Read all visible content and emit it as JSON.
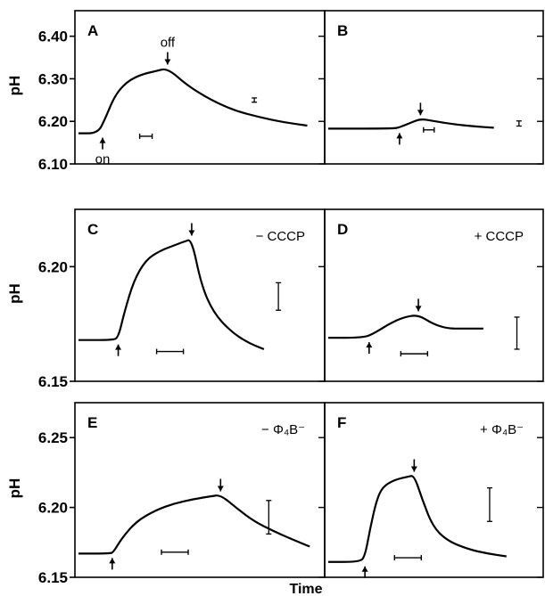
{
  "figure": {
    "xlabel": "Time"
  },
  "chart_data": [
    {
      "type": "line",
      "panel": "A",
      "ylabel": "pH",
      "yticks": [
        6.4,
        6.3,
        6.2,
        6.1
      ],
      "ylim": [
        6.1,
        6.46
      ],
      "xlim": [
        0,
        10
      ],
      "series": [
        {
          "x": [
            0,
            0.8,
            1.1,
            1.5,
            2.0,
            2.6,
            3.2,
            3.7,
            4.5,
            5.5,
            6.5,
            7.5,
            8.5,
            9.5
          ],
          "y": [
            6.172,
            6.172,
            6.205,
            6.26,
            6.293,
            6.31,
            6.318,
            6.325,
            6.285,
            6.25,
            6.225,
            6.21,
            6.198,
            6.19
          ]
        }
      ],
      "annotations": [
        {
          "text": "on",
          "x": 1.0,
          "y": 6.172,
          "dir": "up"
        },
        {
          "text": "off",
          "x": 3.7,
          "y": 6.325,
          "dir": "down"
        }
      ],
      "time_bar": {
        "x": 2.8,
        "y": 6.165
      },
      "error_bar": {
        "x": 7.3,
        "y": 6.25,
        "half_height": 0.005
      }
    },
    {
      "type": "line",
      "panel": "B",
      "ylim": [
        6.1,
        6.46
      ],
      "xlim": [
        0,
        10
      ],
      "series": [
        {
          "x": [
            0,
            3.1,
            3.4,
            3.9,
            4.4,
            5.0,
            6.0,
            7.0,
            7.9
          ],
          "y": [
            6.183,
            6.183,
            6.186,
            6.196,
            6.206,
            6.201,
            6.193,
            6.188,
            6.185
          ]
        }
      ],
      "annotations": [
        {
          "text": "",
          "x": 3.4,
          "y": 6.183,
          "dir": "up"
        },
        {
          "text": "",
          "x": 4.4,
          "y": 6.206,
          "dir": "down"
        }
      ],
      "time_bar": {
        "x": 4.8,
        "y": 6.18
      },
      "error_bar": {
        "x": 9.1,
        "y": 6.195,
        "half_height": 0.006
      }
    },
    {
      "type": "line",
      "panel": "C",
      "ylabel": "pH",
      "yticks": [
        6.2,
        6.15
      ],
      "ylim": [
        6.15,
        6.225
      ],
      "xlim": [
        0,
        10
      ],
      "condition": "− CCCP",
      "series": [
        {
          "x": [
            0,
            1.4,
            1.65,
            1.9,
            2.3,
            2.8,
            3.4,
            3.9,
            4.4,
            4.7,
            5.1,
            5.6,
            6.3,
            7.0,
            7.7
          ],
          "y": [
            6.168,
            6.168,
            6.169,
            6.18,
            6.194,
            6.203,
            6.207,
            6.209,
            6.211,
            6.212,
            6.192,
            6.18,
            6.172,
            6.167,
            6.164
          ]
        }
      ],
      "annotations": [
        {
          "text": "",
          "x": 1.65,
          "y": 6.168,
          "dir": "up"
        },
        {
          "text": "",
          "x": 4.7,
          "y": 6.212,
          "dir": "down"
        }
      ],
      "time_bar": {
        "x": 3.8,
        "y": 6.163
      },
      "error_bar": {
        "x": 8.3,
        "y": 6.187,
        "half_height": 0.006
      }
    },
    {
      "type": "line",
      "panel": "D",
      "ylim": [
        6.15,
        6.225
      ],
      "xlim": [
        0,
        10
      ],
      "condition": "+ CCCP",
      "series": [
        {
          "x": [
            0,
            1.7,
            2.2,
            2.9,
            3.6,
            4.3,
            5.0,
            5.7,
            6.5,
            7.4
          ],
          "y": [
            6.169,
            6.169,
            6.171,
            6.175,
            6.178,
            6.179,
            6.175,
            6.173,
            6.173,
            6.173
          ]
        }
      ],
      "annotations": [
        {
          "text": "",
          "x": 1.95,
          "y": 6.169,
          "dir": "up"
        },
        {
          "text": "",
          "x": 4.3,
          "y": 6.179,
          "dir": "down"
        }
      ],
      "time_bar": {
        "x": 4.1,
        "y": 6.162
      },
      "error_bar": {
        "x": 9.0,
        "y": 6.171,
        "half_height": 0.007
      }
    },
    {
      "type": "line",
      "panel": "E",
      "ylabel": "pH",
      "yticks": [
        6.25,
        6.2,
        6.15
      ],
      "ylim": [
        6.15,
        6.275
      ],
      "xlim": [
        0,
        10
      ],
      "condition": "− Φ₄B⁻",
      "series": [
        {
          "x": [
            0,
            1.3,
            1.45,
            1.8,
            2.4,
            3.2,
            4.0,
            4.8,
            5.5,
            5.9,
            6.6,
            7.3,
            8.1,
            8.9,
            9.6
          ],
          "y": [
            6.167,
            6.167,
            6.168,
            6.178,
            6.19,
            6.198,
            6.203,
            6.206,
            6.208,
            6.209,
            6.199,
            6.19,
            6.183,
            6.177,
            6.172
          ]
        }
      ],
      "annotations": [
        {
          "text": "",
          "x": 1.4,
          "y": 6.167,
          "dir": "up"
        },
        {
          "text": "",
          "x": 5.9,
          "y": 6.209,
          "dir": "down"
        }
      ],
      "time_bar": {
        "x": 4.0,
        "y": 6.168
      },
      "error_bar": {
        "x": 7.9,
        "y": 6.193,
        "half_height": 0.012
      }
    },
    {
      "type": "line",
      "panel": "F",
      "ylim": [
        6.15,
        6.275
      ],
      "xlim": [
        0,
        10
      ],
      "condition": "+ Φ₄B⁻",
      "series": [
        {
          "x": [
            0,
            1.5,
            1.75,
            2.0,
            2.3,
            2.6,
            3.2,
            3.8,
            4.1,
            4.5,
            5.0,
            5.7,
            6.7,
            7.6,
            8.5
          ],
          "y": [
            6.161,
            6.161,
            6.165,
            6.185,
            6.205,
            6.215,
            6.22,
            6.222,
            6.223,
            6.205,
            6.186,
            6.176,
            6.17,
            6.167,
            6.165
          ]
        }
      ],
      "annotations": [
        {
          "text": "",
          "x": 1.75,
          "y": 6.161,
          "dir": "up"
        },
        {
          "text": "",
          "x": 4.1,
          "y": 6.223,
          "dir": "down"
        }
      ],
      "time_bar": {
        "x": 3.8,
        "y": 6.164
      },
      "error_bar": {
        "x": 7.7,
        "y": 6.202,
        "half_height": 0.012
      }
    }
  ]
}
